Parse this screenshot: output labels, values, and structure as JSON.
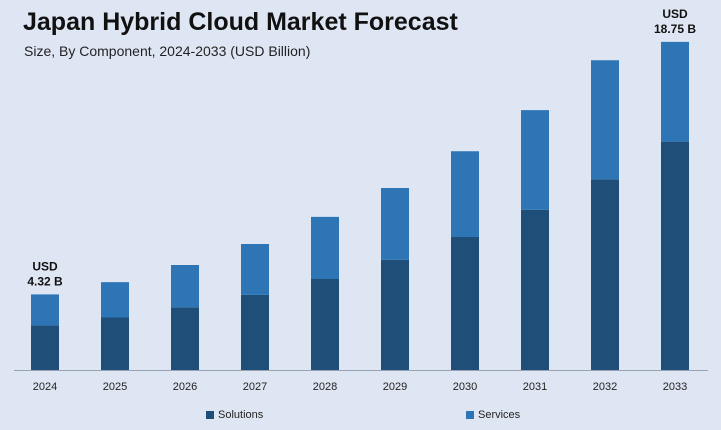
{
  "chart_data": {
    "type": "bar",
    "stacked": true,
    "title": "Japan Hybrid Cloud Market Forecast",
    "subtitle": "Size, By Component, 2024-2033 (USD Billion)",
    "xlabel": "",
    "ylabel": "",
    "categories": [
      "2024",
      "2025",
      "2026",
      "2027",
      "2028",
      "2029",
      "2030",
      "2031",
      "2032",
      "2033"
    ],
    "series": [
      {
        "name": "Solutions",
        "color": "#1f4e79",
        "values": [
          2.55,
          3.0,
          3.58,
          4.3,
          5.2,
          6.3,
          7.6,
          9.15,
          10.9,
          13.05
        ]
      },
      {
        "name": "Services",
        "color": "#2e75b6",
        "values": [
          1.77,
          2.02,
          2.42,
          2.9,
          3.55,
          4.1,
          4.9,
          5.7,
          6.8,
          5.7
        ]
      }
    ],
    "totals": [
      4.32,
      5.02,
      6.0,
      7.2,
      8.75,
      10.4,
      12.5,
      14.85,
      17.7,
      18.75
    ],
    "ylim": [
      0,
      20
    ],
    "grid": false,
    "legend_position": "bottom",
    "annotations": [
      {
        "category": "2024",
        "line1": "USD",
        "line2": "4.32 B"
      },
      {
        "category": "2033",
        "line1": "USD",
        "line2": "18.75 B"
      }
    ]
  }
}
